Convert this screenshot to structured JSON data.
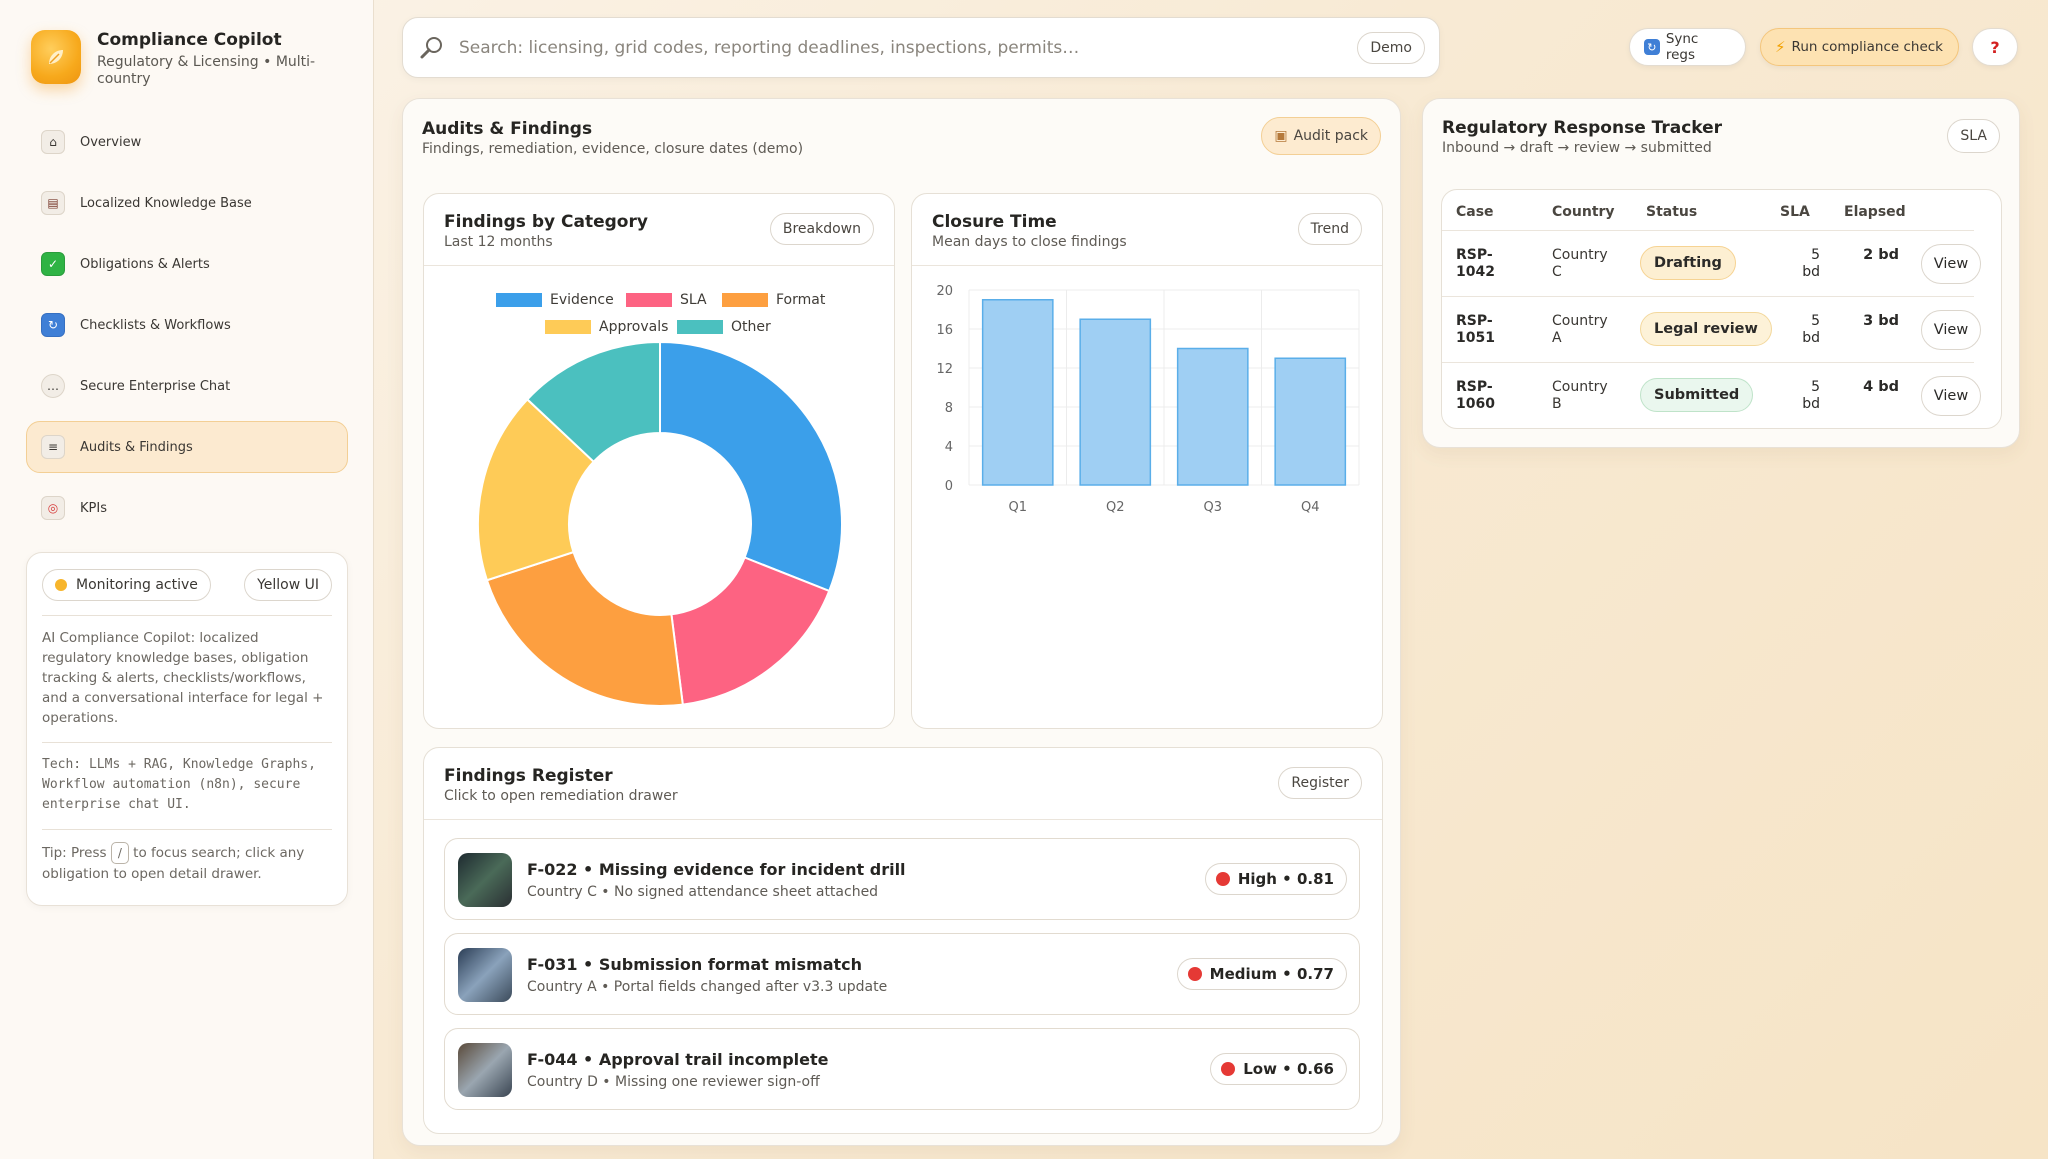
{
  "brand": {
    "title": "Compliance Copilot",
    "subtitle": "Regulatory & Licensing • Multi-country"
  },
  "nav": [
    {
      "label": "Overview",
      "icon": "house-icon"
    },
    {
      "label": "Localized Knowledge Base",
      "icon": "books-icon"
    },
    {
      "label": "Obligations & Alerts",
      "icon": "checkmark-icon"
    },
    {
      "label": "Checklists & Workflows",
      "icon": "cycle-icon"
    },
    {
      "label": "Secure Enterprise Chat",
      "icon": "speech-bubble-icon"
    },
    {
      "label": "Audits & Findings",
      "icon": "clipboard-icon",
      "active": true
    },
    {
      "label": "KPIs",
      "icon": "target-icon"
    }
  ],
  "info": {
    "monitoring": "Monitoring active",
    "theme": "Yellow UI",
    "description": "AI Compliance Copilot: localized regulatory knowledge bases, obligation tracking & alerts, checklists/workflows, and a conversational interface for legal + operations.",
    "tech": "Tech: LLMs + RAG, Knowledge Graphs, Workflow automation (n8n), secure enterprise chat UI.",
    "tip_before": "Tip: Press",
    "tip_key": "/",
    "tip_after": "to focus search; click any obligation to open detail drawer."
  },
  "search": {
    "placeholder": "Search: licensing, grid codes, reporting deadlines, inspections, permits…",
    "badge": "Demo"
  },
  "top": {
    "sync": "Sync regs",
    "run": "Run compliance check",
    "help": "?"
  },
  "audits": {
    "title": "Audits & Findings",
    "subtitle": "Findings, remediation, evidence, closure dates (demo)",
    "button": "Audit pack"
  },
  "category_card": {
    "title": "Findings by Category",
    "subtitle": "Last 12 months",
    "button": "Breakdown"
  },
  "closure_card": {
    "title": "Closure Time",
    "subtitle": "Mean days to close findings",
    "button": "Trend"
  },
  "chart_data": [
    {
      "type": "pie",
      "title": "Findings by Category",
      "categories": [
        "Evidence",
        "SLA",
        "Format",
        "Approvals",
        "Other"
      ],
      "values": [
        31,
        17,
        22,
        17,
        13
      ],
      "colors": [
        "#3b9fea",
        "#fd6382",
        "#fd9f40",
        "#fecb57",
        "#4bc0bf"
      ],
      "legend": "top",
      "donut": true
    },
    {
      "type": "bar",
      "title": "Closure Time",
      "categories": [
        "Q1",
        "Q2",
        "Q3",
        "Q4"
      ],
      "values": [
        19,
        17,
        14,
        13
      ],
      "yticks": [
        "20",
        "16",
        "12",
        "8",
        "4",
        "0"
      ],
      "ylim": [
        0,
        20
      ],
      "color": "#9fcff3",
      "border": "#5aaee9",
      "grid": true
    }
  ],
  "register": {
    "title": "Findings Register",
    "subtitle": "Click to open remediation drawer",
    "button": "Register",
    "items": [
      {
        "title": "F-022 • Missing evidence for incident drill",
        "sub": "Country C • No signed attendance sheet attached",
        "severity": "High • 0.81"
      },
      {
        "title": "F-031 • Submission format mismatch",
        "sub": "Country A • Portal fields changed after v3.3 update",
        "severity": "Medium • 0.77"
      },
      {
        "title": "F-044 • Approval trail incomplete",
        "sub": "Country D • Missing one reviewer sign-off",
        "severity": "Low • 0.66"
      }
    ]
  },
  "tracker": {
    "title": "Regulatory Response Tracker",
    "subtitle": "Inbound → draft → review → submitted",
    "button": "SLA",
    "headers": [
      "Case",
      "Country",
      "Status",
      "SLA",
      "Elapsed"
    ],
    "rows": [
      {
        "case1": "RSP-",
        "case2": "1042",
        "country1": "Country",
        "country2": "C",
        "status": "Drafting",
        "sla1": "5",
        "sla2": "bd",
        "elapsed": "2 bd",
        "action": "View",
        "status_color": "#fdefd2",
        "status_border": "#f6d393"
      },
      {
        "case1": "RSP-",
        "case2": "1051",
        "country1": "Country",
        "country2": "A",
        "status": "Legal review",
        "sla1": "5",
        "sla2": "bd",
        "elapsed": "3 bd",
        "action": "View",
        "status_color": "#fdf2d8",
        "status_border": "#f3d89d"
      },
      {
        "case1": "RSP-",
        "case2": "1060",
        "country1": "Country",
        "country2": "B",
        "status": "Submitted",
        "sla1": "5",
        "sla2": "bd",
        "elapsed": "4 bd",
        "action": "View",
        "status_color": "#eaf7ee",
        "status_border": "#bfe3c9"
      }
    ]
  }
}
